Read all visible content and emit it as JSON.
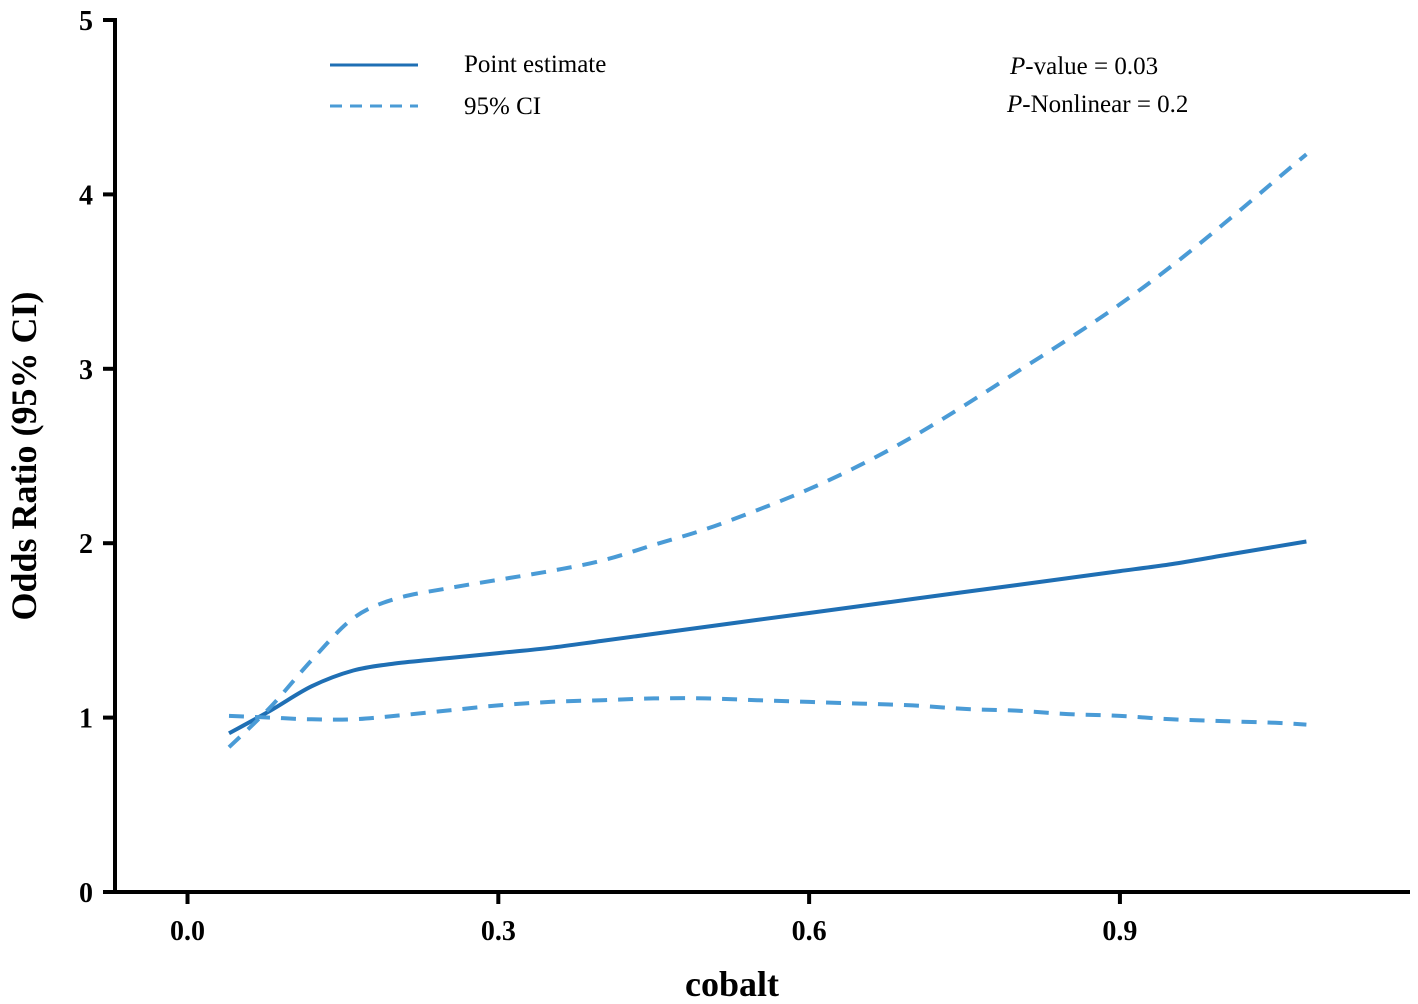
{
  "chart_data": {
    "type": "line",
    "title": "",
    "xlabel": "cobalt",
    "ylabel": "Odds Ratio (95% CI)",
    "xlim": [
      -0.07,
      1.18
    ],
    "ylim": [
      0,
      5
    ],
    "x_ticks": [
      0.0,
      0.3,
      0.6,
      0.9
    ],
    "x_tick_labels": [
      "0.0",
      "0.3",
      "0.6",
      "0.9"
    ],
    "y_ticks": [
      0,
      1,
      2,
      3,
      4,
      5
    ],
    "y_tick_labels": [
      "0",
      "1",
      "2",
      "3",
      "4",
      "5"
    ],
    "grid": false,
    "legend_position": "top-left",
    "x": [
      0.04,
      0.08,
      0.12,
      0.16,
      0.2,
      0.25,
      0.3,
      0.35,
      0.4,
      0.45,
      0.5,
      0.55,
      0.6,
      0.65,
      0.7,
      0.75,
      0.8,
      0.85,
      0.9,
      0.95,
      1.0,
      1.05,
      1.08
    ],
    "series": [
      {
        "name": "Point estimate",
        "style": "solid",
        "color": "#1f6fb4",
        "values": [
          0.91,
          1.04,
          1.18,
          1.27,
          1.31,
          1.34,
          1.37,
          1.4,
          1.44,
          1.48,
          1.52,
          1.56,
          1.6,
          1.64,
          1.68,
          1.72,
          1.76,
          1.8,
          1.84,
          1.88,
          1.93,
          1.98,
          2.01
        ]
      },
      {
        "name": "95% CI upper",
        "style": "dashed",
        "color": "#4a9bd6",
        "values": [
          0.83,
          1.06,
          1.33,
          1.57,
          1.68,
          1.74,
          1.79,
          1.84,
          1.9,
          1.99,
          2.08,
          2.19,
          2.31,
          2.45,
          2.61,
          2.79,
          2.98,
          3.17,
          3.37,
          3.59,
          3.83,
          4.08,
          4.23
        ]
      },
      {
        "name": "95% CI lower",
        "style": "dashed",
        "color": "#4a9bd6",
        "values": [
          1.01,
          1.0,
          0.99,
          0.99,
          1.01,
          1.04,
          1.07,
          1.09,
          1.1,
          1.11,
          1.11,
          1.1,
          1.09,
          1.08,
          1.07,
          1.05,
          1.04,
          1.02,
          1.01,
          0.99,
          0.98,
          0.97,
          0.96
        ]
      }
    ],
    "legend": [
      {
        "label": "Point estimate",
        "style": "solid",
        "color": "#1f6fb4"
      },
      {
        "label": "95% CI",
        "style": "dashed",
        "color": "#4a9bd6"
      }
    ],
    "annotations": {
      "p_value_prefix": "P",
      "p_value_rest": "-value = 0.03",
      "p_nonlinear_prefix": "P",
      "p_nonlinear_rest": "-Nonlinear = 0.2"
    }
  }
}
